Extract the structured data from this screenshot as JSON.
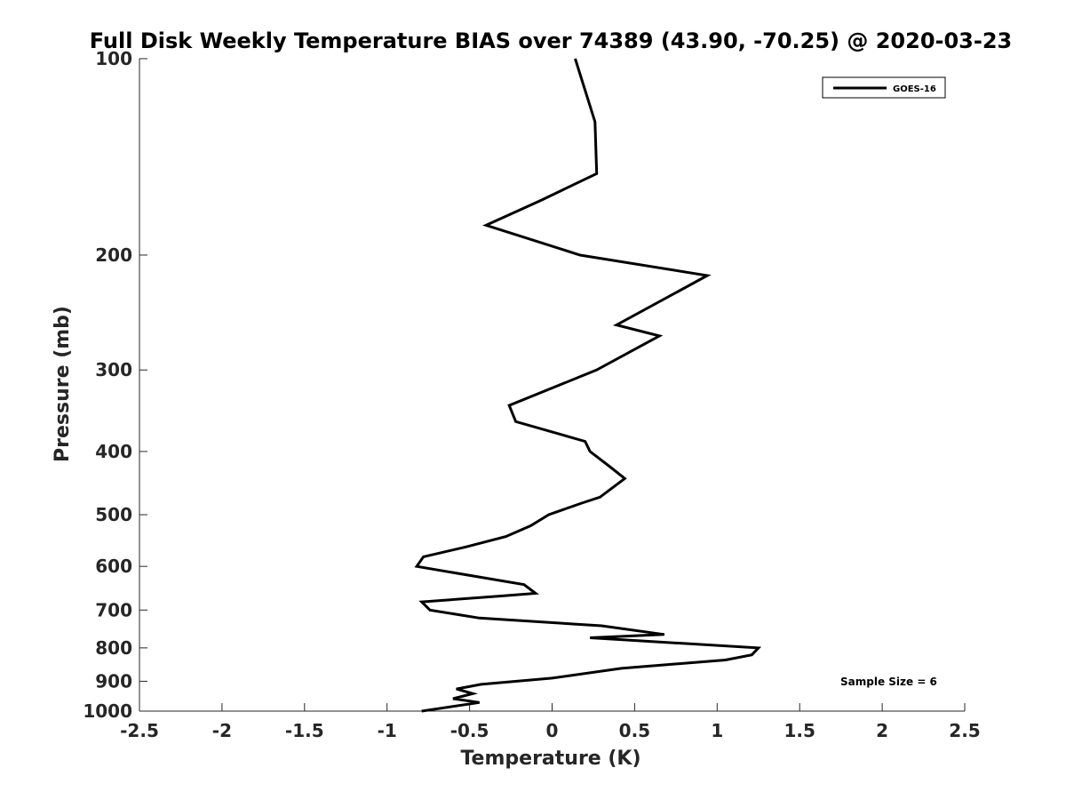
{
  "chart_data": {
    "type": "line",
    "title": "Full Disk Weekly Temperature BIAS over 74389 (43.90, -70.25) @ 2020-03-23",
    "xlabel": "Temperature (K)",
    "ylabel": "Pressure (mb)",
    "xlim": [
      -2.5,
      2.5
    ],
    "ylim": [
      100,
      1000
    ],
    "y_scale": "log",
    "y_reversed": true,
    "grid": false,
    "x_ticks": [
      -2.5,
      -2,
      -1.5,
      -1,
      -0.5,
      0,
      0.5,
      1,
      1.5,
      2,
      2.5
    ],
    "x_tick_labels": [
      "-2.5",
      "-2",
      "-1.5",
      "-1",
      "-0.5",
      "0",
      "0.5",
      "1",
      "1.5",
      "2",
      "2.5"
    ],
    "y_ticks": [
      100,
      200,
      300,
      400,
      500,
      600,
      700,
      800,
      900,
      1000
    ],
    "y_tick_labels": [
      "100",
      "200",
      "300",
      "400",
      "500",
      "600",
      "700",
      "800",
      "900",
      "1000"
    ],
    "legend": {
      "position": "top-right",
      "entries": [
        "GOES-16"
      ]
    },
    "annotation": "Sample Size = 6",
    "series": [
      {
        "name": "GOES-16",
        "color": "#000000",
        "points": [
          [
            0.14,
            100
          ],
          [
            0.26,
            125
          ],
          [
            0.27,
            150
          ],
          [
            -0.07,
            165
          ],
          [
            -0.4,
            180
          ],
          [
            0.17,
            200
          ],
          [
            0.94,
            215
          ],
          [
            0.39,
            256
          ],
          [
            0.65,
            266
          ],
          [
            0.27,
            300
          ],
          [
            -0.26,
            340
          ],
          [
            -0.22,
            360
          ],
          [
            0.2,
            386
          ],
          [
            0.23,
            400
          ],
          [
            0.35,
            422
          ],
          [
            0.44,
            440
          ],
          [
            0.29,
            470
          ],
          [
            0.18,
            480
          ],
          [
            -0.02,
            500
          ],
          [
            -0.13,
            520
          ],
          [
            -0.28,
            540
          ],
          [
            -0.52,
            560
          ],
          [
            -0.78,
            580
          ],
          [
            -0.82,
            600
          ],
          [
            -0.17,
            640
          ],
          [
            -0.1,
            660
          ],
          [
            -0.3,
            666
          ],
          [
            -0.79,
            680
          ],
          [
            -0.74,
            700
          ],
          [
            -0.44,
            720
          ],
          [
            0.3,
            740
          ],
          [
            0.68,
            763
          ],
          [
            0.23,
            772
          ],
          [
            1.25,
            800
          ],
          [
            1.21,
            820
          ],
          [
            1.05,
            835
          ],
          [
            0.42,
            860
          ],
          [
            0.0,
            890
          ],
          [
            -0.43,
            910
          ],
          [
            -0.58,
            925
          ],
          [
            -0.48,
            940
          ],
          [
            -0.6,
            957
          ],
          [
            -0.44,
            970
          ],
          [
            -0.79,
            1000
          ]
        ]
      }
    ]
  }
}
